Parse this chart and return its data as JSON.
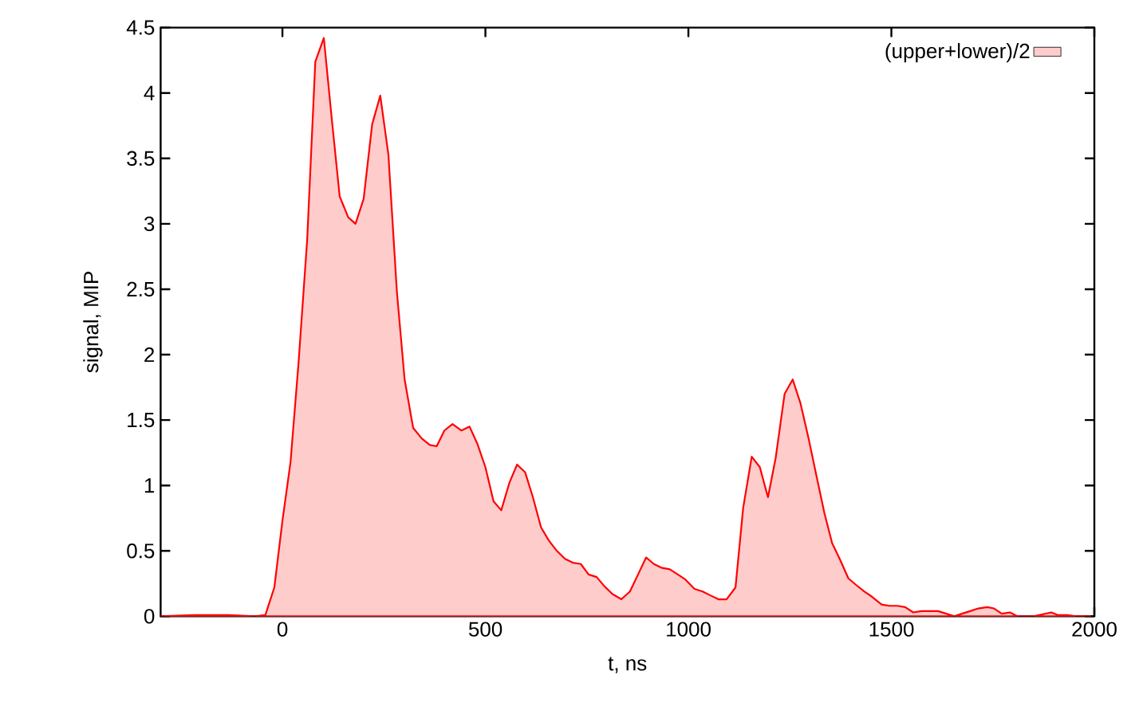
{
  "chart_data": {
    "type": "area",
    "xlabel": "t, ns",
    "ylabel": "signal, MIP",
    "xlim": [
      -300,
      2000
    ],
    "ylim": [
      0,
      4.5
    ],
    "xticks": [
      0,
      500,
      1000,
      1500,
      2000
    ],
    "yticks": [
      0,
      0.5,
      1,
      1.5,
      2,
      2.5,
      3,
      3.5,
      4,
      4.5
    ],
    "legend": "top right",
    "series": [
      {
        "name": "(upper+lower)/2",
        "color": "#ff0000",
        "x": [
          -300,
          -217,
          -178,
          -133,
          -68,
          -42,
          -20,
          0,
          20,
          40,
          61,
          81,
          102,
          121,
          141,
          162,
          180,
          200,
          221,
          241,
          261,
          282,
          301,
          322,
          343,
          363,
          380,
          399,
          419,
          441,
          461,
          480,
          500,
          520,
          539,
          559,
          578,
          598,
          617,
          637,
          656,
          676,
          696,
          715,
          735,
          754,
          774,
          793,
          813,
          835,
          856,
          876,
          896,
          915,
          935,
          954,
          974,
          993,
          1015,
          1035,
          1054,
          1074,
          1094,
          1116,
          1135,
          1156,
          1176,
          1196,
          1215,
          1237,
          1257,
          1276,
          1296,
          1315,
          1335,
          1354,
          1374,
          1394,
          1413,
          1433,
          1452,
          1476,
          1495,
          1515,
          1534,
          1554,
          1574,
          1593,
          1615,
          1635,
          1655,
          1674,
          1694,
          1714,
          1736,
          1753,
          1772,
          1792,
          1811,
          1851,
          1894,
          1910,
          1933,
          1955,
          1990
        ],
        "values": [
          0,
          0.01,
          0.01,
          0.01,
          0,
          0.01,
          0.22,
          0.73,
          1.18,
          1.95,
          2.88,
          4.24,
          4.42,
          3.82,
          3.21,
          3.05,
          3.0,
          3.19,
          3.76,
          3.98,
          3.53,
          2.48,
          1.81,
          1.44,
          1.36,
          1.31,
          1.3,
          1.42,
          1.47,
          1.42,
          1.45,
          1.32,
          1.14,
          0.88,
          0.81,
          1.02,
          1.16,
          1.1,
          0.91,
          0.68,
          0.58,
          0.5,
          0.44,
          0.41,
          0.4,
          0.32,
          0.3,
          0.23,
          0.17,
          0.13,
          0.19,
          0.32,
          0.45,
          0.4,
          0.37,
          0.36,
          0.32,
          0.28,
          0.21,
          0.19,
          0.16,
          0.13,
          0.13,
          0.22,
          0.83,
          1.22,
          1.14,
          0.91,
          1.21,
          1.7,
          1.81,
          1.63,
          1.36,
          1.08,
          0.79,
          0.56,
          0.43,
          0.29,
          0.24,
          0.19,
          0.15,
          0.09,
          0.08,
          0.08,
          0.07,
          0.03,
          0.04,
          0.04,
          0.04,
          0.02,
          0,
          0.02,
          0.04,
          0.06,
          0.07,
          0.06,
          0.02,
          0.03,
          0,
          0,
          0.03,
          0.01,
          0.01,
          0,
          0
        ]
      }
    ]
  }
}
